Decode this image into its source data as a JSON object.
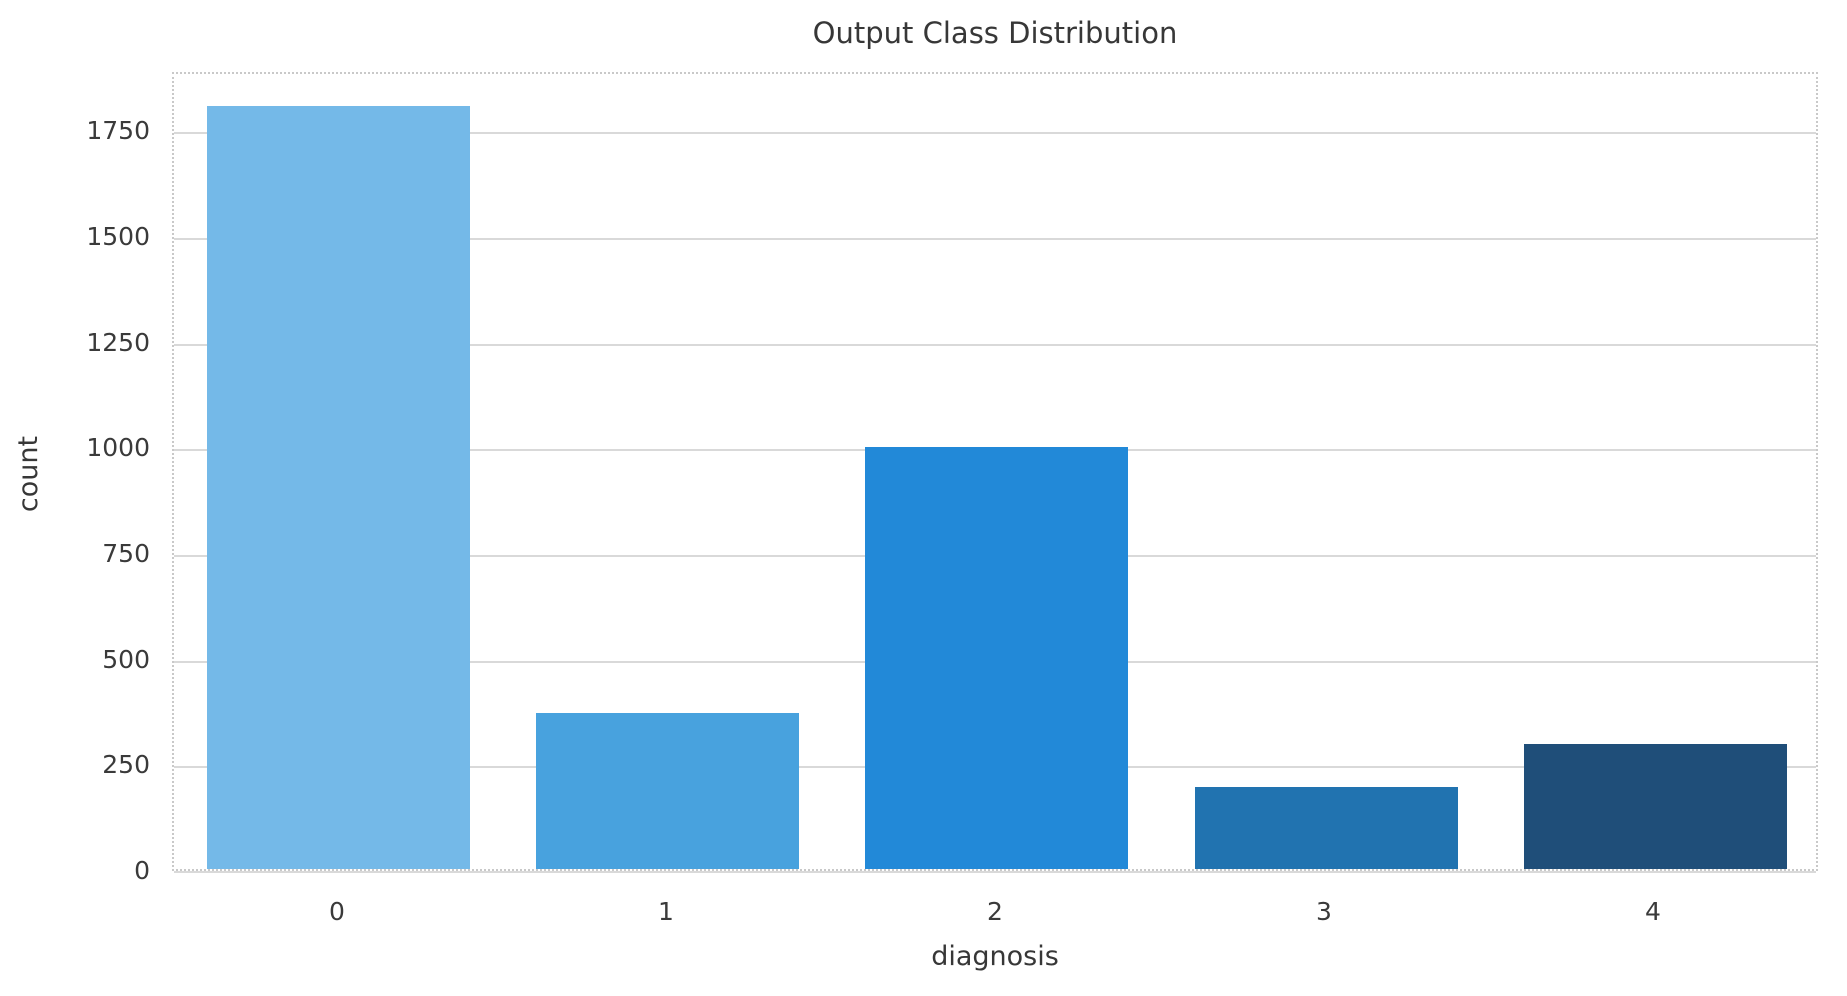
{
  "figure": {
    "title": "Output Class Distribution",
    "xlabel": "diagnosis",
    "ylabel": "count"
  },
  "chart_data": {
    "type": "bar",
    "title": "Output Class Distribution",
    "xlabel": "diagnosis",
    "ylabel": "count",
    "categories": [
      "0",
      "1",
      "2",
      "3",
      "4"
    ],
    "values": [
      1805,
      370,
      999,
      193,
      295
    ],
    "ylim": [
      0,
      1890
    ],
    "yticks": [
      0,
      250,
      500,
      750,
      1000,
      1250,
      1500,
      1750
    ],
    "grid": "horizontal",
    "legend": "none",
    "bar_width_fraction": 0.8,
    "bar_colors": [
      "#74b9e8",
      "#48a2de",
      "#2289d8",
      "#2173b0",
      "#1f4e79"
    ],
    "plot_background": "#ffffff",
    "gridline_color": "#d9d9d9",
    "spine_color": "#c9c9c9",
    "text_color": "#3a3a3a"
  }
}
